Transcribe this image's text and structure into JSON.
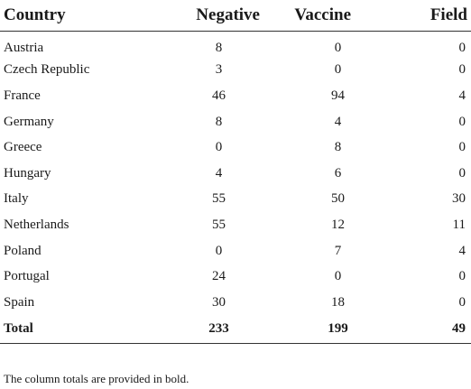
{
  "table": {
    "headers": {
      "country": "Country",
      "negative": "Negative",
      "vaccine": "Vaccine",
      "field": "Field"
    },
    "rows": [
      {
        "country": "Austria",
        "negative": "8",
        "vaccine": "0",
        "field": "0"
      },
      {
        "country": "Czech Republic",
        "negative": "3",
        "vaccine": "0",
        "field": "0"
      },
      {
        "country": "France",
        "negative": "46",
        "vaccine": "94",
        "field": "4"
      },
      {
        "country": "Germany",
        "negative": "8",
        "vaccine": "4",
        "field": "0"
      },
      {
        "country": "Greece",
        "negative": "0",
        "vaccine": "8",
        "field": "0"
      },
      {
        "country": "Hungary",
        "negative": "4",
        "vaccine": "6",
        "field": "0"
      },
      {
        "country": "Italy",
        "negative": "55",
        "vaccine": "50",
        "field": "30"
      },
      {
        "country": "Netherlands",
        "negative": "55",
        "vaccine": "12",
        "field": "11"
      },
      {
        "country": "Poland",
        "negative": "0",
        "vaccine": "7",
        "field": "4"
      },
      {
        "country": "Portugal",
        "negative": "24",
        "vaccine": "0",
        "field": "0"
      },
      {
        "country": "Spain",
        "negative": "30",
        "vaccine": "18",
        "field": "0"
      }
    ],
    "total": {
      "country": "Total",
      "negative": "233",
      "vaccine": "199",
      "field": "49"
    }
  },
  "footnote": "The column totals are provided in bold."
}
